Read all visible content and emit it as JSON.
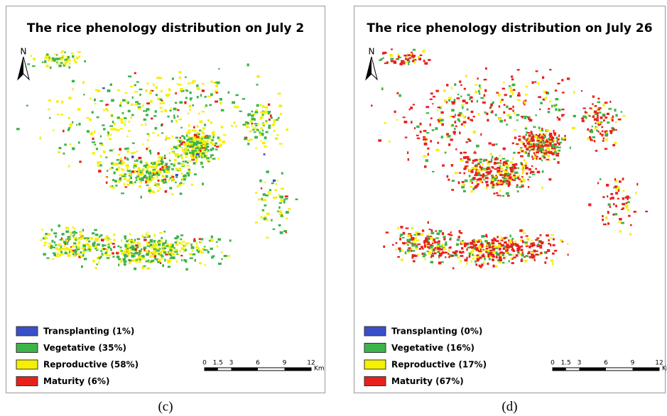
{
  "panels": [
    {
      "title": "The rice phenology distribution on July 2",
      "north": "N",
      "legend": [
        "Transplanting (1%)",
        "Vegetative (35%)",
        "Reproductive (58%)",
        "Maturity (6%)"
      ],
      "scale": {
        "ticks": [
          0,
          1.5,
          3,
          6,
          9,
          12
        ],
        "unit": "Km"
      },
      "caption": "(c)"
    },
    {
      "title": "The rice phenology distribution on July 26",
      "north": "N",
      "legend": [
        "Transplanting (0%)",
        "Vegetative (16%)",
        "Reproductive (17%)",
        "Maturity (67%)"
      ],
      "scale": {
        "ticks": [
          0,
          1.5,
          3,
          6,
          9,
          12
        ],
        "unit": "Km"
      },
      "caption": "(d)"
    }
  ]
}
